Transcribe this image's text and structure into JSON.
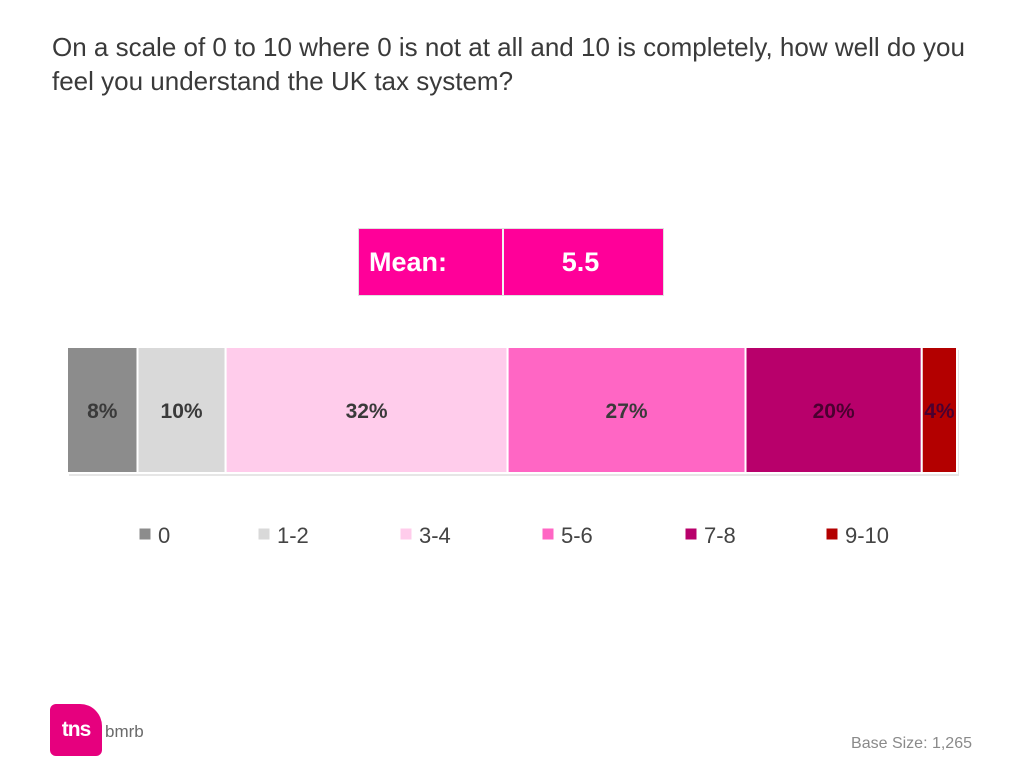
{
  "title": "On a scale of 0 to 10 where 0 is not at all and 10 is completely, how well do you feel you understand the UK tax system?",
  "mean": {
    "label": "Mean:",
    "value": "5.5"
  },
  "chart_data": {
    "type": "bar",
    "orientation": "horizontal",
    "stacked": true,
    "title": "",
    "xlabel": "",
    "ylabel": "",
    "xlim": [
      0,
      100
    ],
    "grid": false,
    "legend_position": "bottom",
    "categories": [
      ""
    ],
    "series": [
      {
        "name": "0",
        "values": [
          8
        ],
        "label": "8%",
        "color": "#8c8c8c"
      },
      {
        "name": "1-2",
        "values": [
          10
        ],
        "label": "10%",
        "color": "#d9d9d9"
      },
      {
        "name": "3-4",
        "values": [
          32
        ],
        "label": "32%",
        "color": "#ffcceb"
      },
      {
        "name": "5-6",
        "values": [
          27
        ],
        "label": "27%",
        "color": "#ff66c4"
      },
      {
        "name": "7-8",
        "values": [
          20
        ],
        "label": "20%",
        "color": "#b8006b"
      },
      {
        "name": "9-10",
        "values": [
          4
        ],
        "label": "4%",
        "color": "#b30000"
      }
    ]
  },
  "footer": {
    "brand_main": "tns",
    "brand_sub": "bmrb",
    "base_size": "Base Size: 1,265"
  }
}
